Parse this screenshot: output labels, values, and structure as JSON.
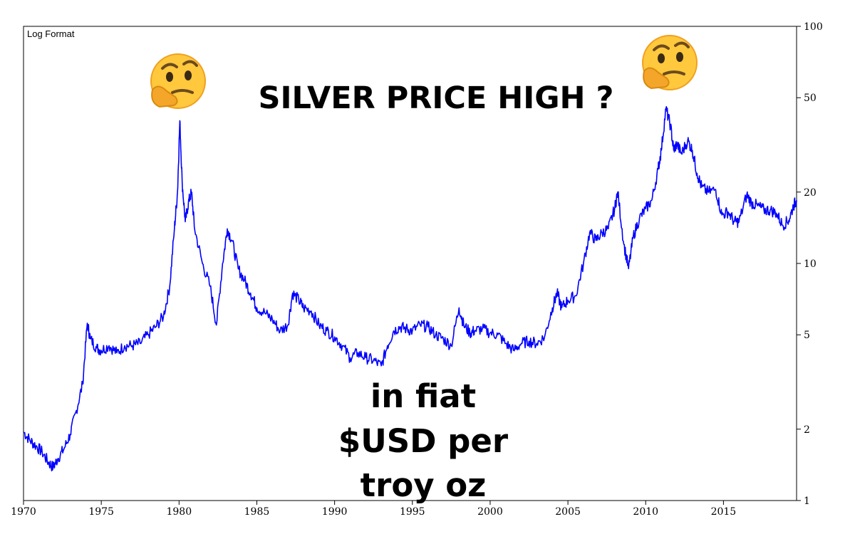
{
  "chart_data": {
    "type": "line",
    "title": "SILVER PRICE HIGH ?",
    "format_label": "Log Format",
    "annotation_lines": [
      "in fiat",
      "$USD per",
      "troy oz"
    ],
    "xlabel": "",
    "ylabel": "",
    "y_scale": "log",
    "xlim": [
      1970,
      2019.7
    ],
    "ylim": [
      1,
      100
    ],
    "x_ticks": [
      1970,
      1975,
      1980,
      1985,
      1990,
      1995,
      2000,
      2005,
      2010,
      2015
    ],
    "x_tick_labels": [
      "1970",
      "1975",
      "1980",
      "1985",
      "1990",
      "1995",
      "2000",
      "2005",
      "2010",
      "2015"
    ],
    "y_ticks": [
      1,
      2,
      5,
      10,
      20,
      50,
      100
    ],
    "y_tick_labels": [
      "1",
      "2",
      "5",
      "10",
      "20",
      "50",
      "100"
    ],
    "grid": false,
    "line_color": "#0000ff",
    "emoji_icons": [
      "thinking-face-icon",
      "thinking-face-icon"
    ],
    "series": [
      {
        "points": [
          [
            1970.0,
            1.95
          ],
          [
            1970.4,
            1.8
          ],
          [
            1970.8,
            1.7
          ],
          [
            1971.2,
            1.6
          ],
          [
            1971.6,
            1.45
          ],
          [
            1971.9,
            1.38
          ],
          [
            1972.2,
            1.5
          ],
          [
            1972.6,
            1.65
          ],
          [
            1973.0,
            1.9
          ],
          [
            1973.4,
            2.4
          ],
          [
            1973.8,
            3.1
          ],
          [
            1974.1,
            5.6
          ],
          [
            1974.3,
            4.8
          ],
          [
            1974.7,
            4.4
          ],
          [
            1975.0,
            4.3
          ],
          [
            1975.5,
            4.5
          ],
          [
            1976.0,
            4.2
          ],
          [
            1976.5,
            4.5
          ],
          [
            1977.0,
            4.5
          ],
          [
            1977.5,
            4.6
          ],
          [
            1978.0,
            5.0
          ],
          [
            1978.5,
            5.4
          ],
          [
            1979.0,
            6.0
          ],
          [
            1979.4,
            8.0
          ],
          [
            1979.7,
            14.0
          ],
          [
            1979.9,
            20.0
          ],
          [
            1980.05,
            40.0
          ],
          [
            1980.2,
            22.0
          ],
          [
            1980.4,
            15.0
          ],
          [
            1980.6,
            18.0
          ],
          [
            1980.8,
            20.0
          ],
          [
            1981.0,
            14.0
          ],
          [
            1981.5,
            10.0
          ],
          [
            1982.0,
            8.0
          ],
          [
            1982.4,
            5.5
          ],
          [
            1982.8,
            10.0
          ],
          [
            1983.1,
            14.0
          ],
          [
            1983.4,
            12.5
          ],
          [
            1983.8,
            9.5
          ],
          [
            1984.2,
            8.5
          ],
          [
            1984.6,
            7.5
          ],
          [
            1985.0,
            6.5
          ],
          [
            1985.5,
            6.2
          ],
          [
            1986.0,
            5.8
          ],
          [
            1986.5,
            5.2
          ],
          [
            1987.0,
            5.5
          ],
          [
            1987.3,
            7.5
          ],
          [
            1987.7,
            7.0
          ],
          [
            1988.0,
            6.5
          ],
          [
            1988.5,
            6.3
          ],
          [
            1989.0,
            5.5
          ],
          [
            1989.5,
            5.2
          ],
          [
            1990.0,
            4.9
          ],
          [
            1990.5,
            4.5
          ],
          [
            1991.0,
            4.0
          ],
          [
            1991.5,
            4.2
          ],
          [
            1992.0,
            4.0
          ],
          [
            1992.5,
            3.9
          ],
          [
            1993.0,
            3.7
          ],
          [
            1993.4,
            4.5
          ],
          [
            1993.8,
            5.2
          ],
          [
            1994.2,
            5.4
          ],
          [
            1994.6,
            5.3
          ],
          [
            1995.0,
            5.2
          ],
          [
            1995.5,
            5.5
          ],
          [
            1996.0,
            5.4
          ],
          [
            1996.5,
            5.0
          ],
          [
            1997.0,
            4.8
          ],
          [
            1997.5,
            4.5
          ],
          [
            1998.0,
            6.5
          ],
          [
            1998.3,
            5.5
          ],
          [
            1998.7,
            5.1
          ],
          [
            1999.0,
            5.2
          ],
          [
            1999.5,
            5.3
          ],
          [
            2000.0,
            5.1
          ],
          [
            2000.5,
            5.0
          ],
          [
            2001.0,
            4.6
          ],
          [
            2001.5,
            4.3
          ],
          [
            2002.0,
            4.6
          ],
          [
            2002.5,
            4.7
          ],
          [
            2003.0,
            4.6
          ],
          [
            2003.5,
            4.9
          ],
          [
            2004.0,
            6.5
          ],
          [
            2004.3,
            7.5
          ],
          [
            2004.6,
            6.5
          ],
          [
            2005.0,
            7.0
          ],
          [
            2005.5,
            7.3
          ],
          [
            2006.0,
            10.0
          ],
          [
            2006.4,
            13.5
          ],
          [
            2006.8,
            12.5
          ],
          [
            2007.2,
            13.5
          ],
          [
            2007.6,
            14.0
          ],
          [
            2008.0,
            17.0
          ],
          [
            2008.2,
            20.0
          ],
          [
            2008.6,
            12.0
          ],
          [
            2008.9,
            9.5
          ],
          [
            2009.2,
            13.0
          ],
          [
            2009.6,
            15.5
          ],
          [
            2010.0,
            17.0
          ],
          [
            2010.4,
            18.5
          ],
          [
            2010.8,
            25.0
          ],
          [
            2011.0,
            30.0
          ],
          [
            2011.3,
            45.0
          ],
          [
            2011.6,
            38.0
          ],
          [
            2011.8,
            30.0
          ],
          [
            2012.0,
            32.0
          ],
          [
            2012.3,
            29.0
          ],
          [
            2012.7,
            33.0
          ],
          [
            2013.0,
            30.0
          ],
          [
            2013.3,
            24.0
          ],
          [
            2013.6,
            21.0
          ],
          [
            2014.0,
            20.0
          ],
          [
            2014.5,
            20.5
          ],
          [
            2014.9,
            16.0
          ],
          [
            2015.3,
            16.5
          ],
          [
            2015.7,
            15.0
          ],
          [
            2016.0,
            15.0
          ],
          [
            2016.5,
            19.5
          ],
          [
            2016.8,
            18.0
          ],
          [
            2017.2,
            17.5
          ],
          [
            2017.6,
            16.8
          ],
          [
            2018.0,
            16.8
          ],
          [
            2018.4,
            16.3
          ],
          [
            2018.8,
            14.5
          ],
          [
            2019.2,
            15.2
          ],
          [
            2019.5,
            17.5
          ],
          [
            2019.7,
            18.5
          ]
        ]
      }
    ]
  }
}
